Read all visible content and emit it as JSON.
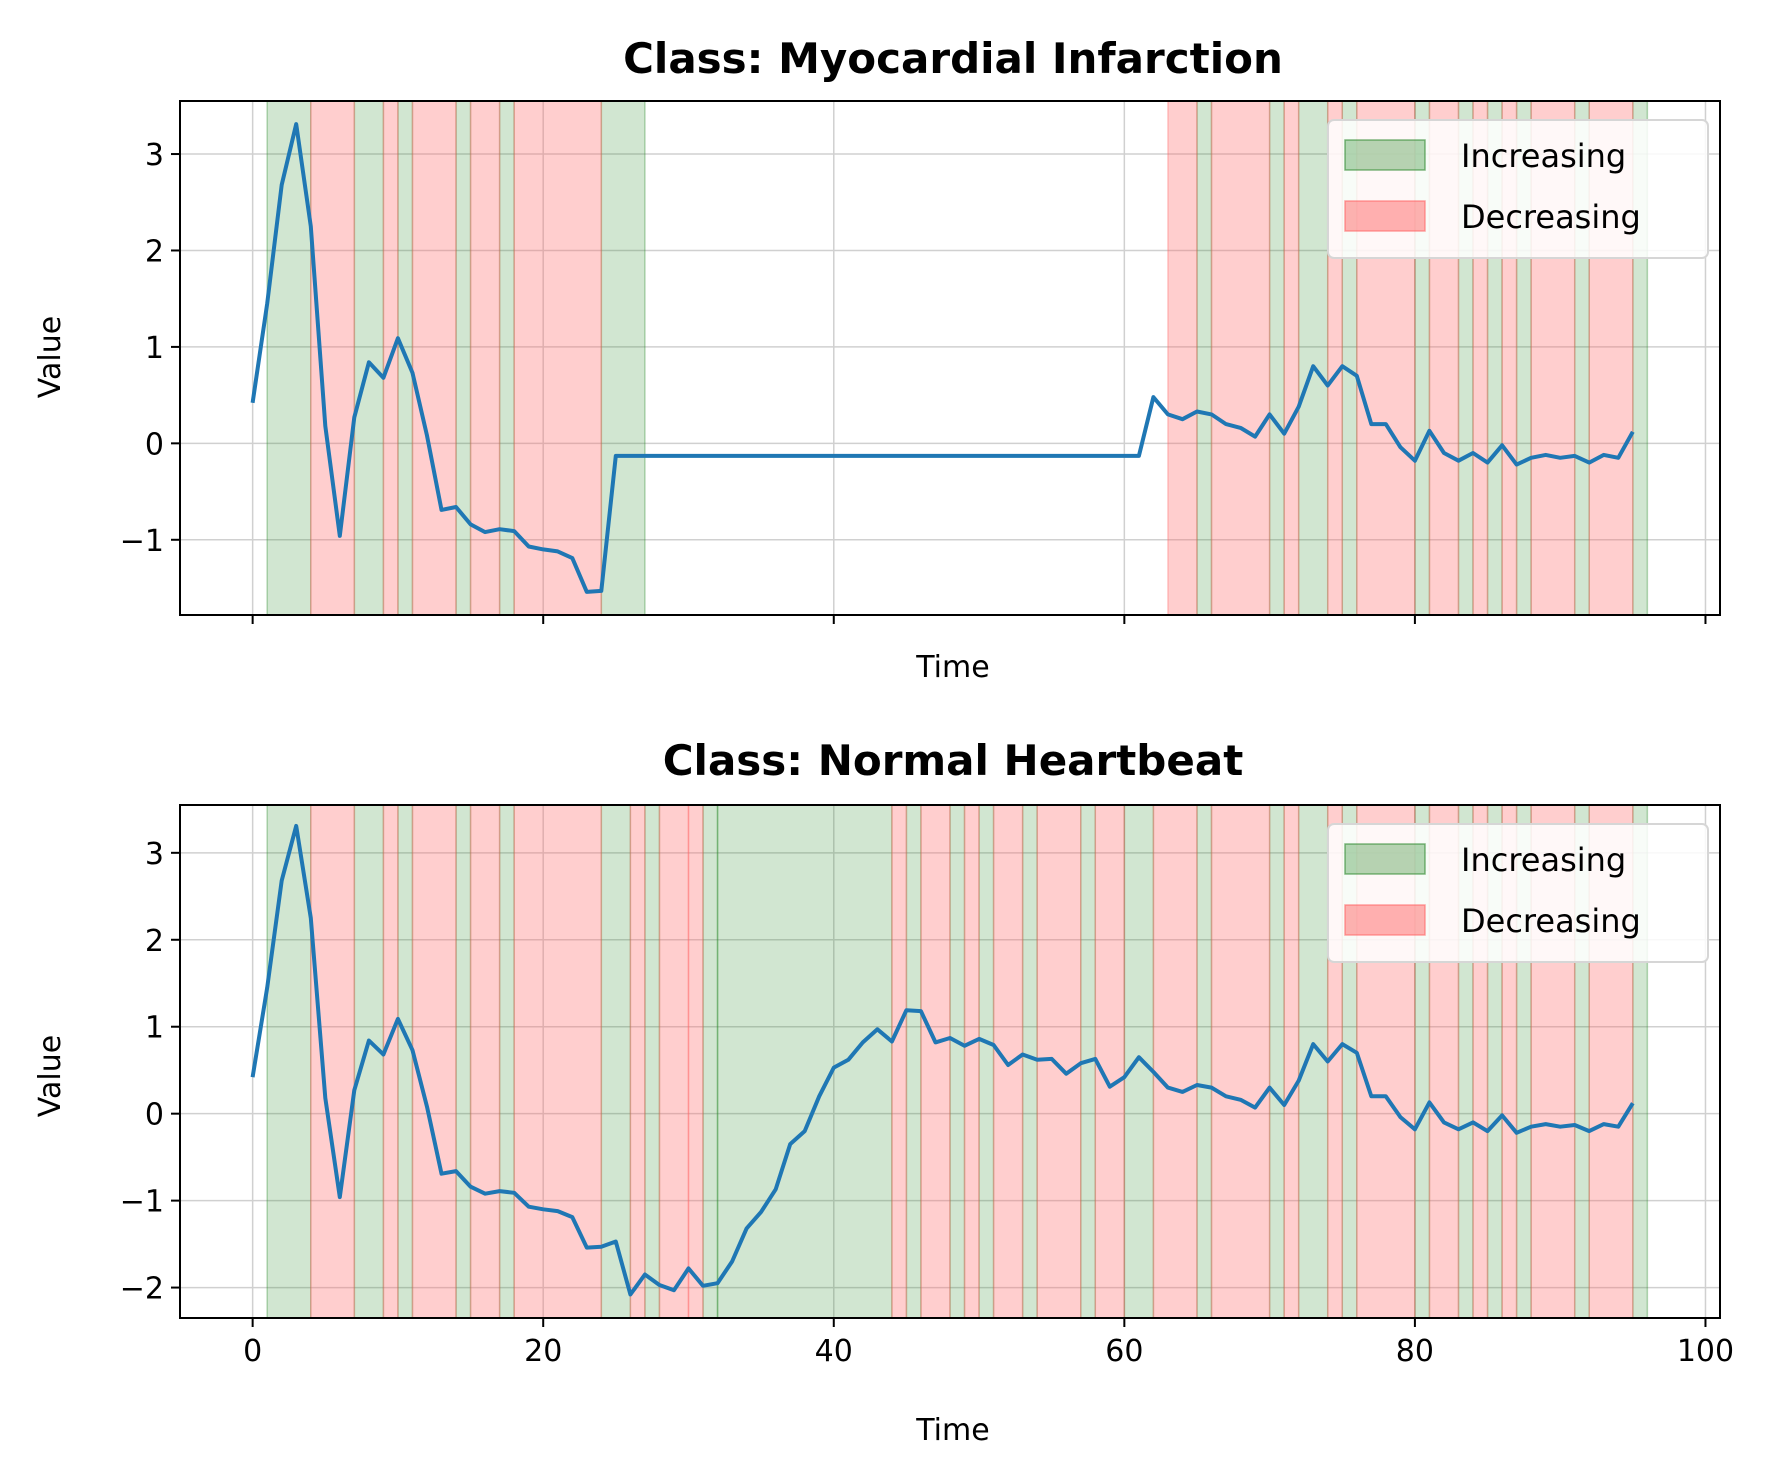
{
  "colors": {
    "line": "#1f77b4",
    "increasing": "#2e8b2e",
    "decreasing": "#ff6666",
    "grid": "#d0d0d0"
  },
  "chart_data": [
    {
      "type": "line",
      "title": "Class: Myocardial Infarction",
      "xlabel": "Time",
      "ylabel": "Value",
      "xlim": [
        -5,
        101
      ],
      "ylim": [
        -1.78,
        3.55
      ],
      "xticks": [
        0,
        20,
        40,
        60,
        80,
        100
      ],
      "yticks": [
        3,
        2,
        1,
        0,
        -1
      ],
      "show_xtick_labels": false,
      "legend": {
        "position": "top-right",
        "entries": [
          "Increasing",
          "Decreasing"
        ]
      },
      "x": [
        0,
        1,
        2,
        3,
        4,
        5,
        6,
        7,
        8,
        9,
        10,
        11,
        12,
        13,
        14,
        15,
        16,
        17,
        18,
        19,
        20,
        21,
        22,
        23,
        24,
        25,
        26,
        27,
        28,
        29,
        30,
        31,
        32,
        33,
        34,
        35,
        36,
        37,
        38,
        39,
        40,
        41,
        42,
        43,
        44,
        45,
        46,
        47,
        48,
        49,
        50,
        51,
        52,
        53,
        54,
        55,
        56,
        57,
        58,
        59,
        60,
        61,
        62,
        63,
        64,
        65,
        66,
        67,
        68,
        69,
        70,
        71,
        72,
        73,
        74,
        75,
        76,
        77,
        78,
        79,
        80,
        81,
        82,
        83,
        84,
        85,
        86,
        87,
        88,
        89,
        90,
        91,
        92,
        93,
        94,
        95
      ],
      "values": [
        0.42,
        1.45,
        2.68,
        3.31,
        2.25,
        0.18,
        -0.96,
        0.27,
        0.84,
        0.68,
        1.09,
        0.73,
        0.08,
        -0.69,
        -0.66,
        -0.84,
        -0.92,
        -0.89,
        -0.91,
        -1.07,
        -1.1,
        -1.12,
        -1.19,
        -1.54,
        -1.53,
        -0.13,
        -0.13,
        -0.13,
        -0.13,
        -0.13,
        -0.13,
        -0.13,
        -0.13,
        -0.13,
        -0.13,
        -0.13,
        -0.13,
        -0.13,
        -0.13,
        -0.13,
        -0.13,
        -0.13,
        -0.13,
        -0.13,
        -0.13,
        -0.13,
        -0.13,
        -0.13,
        -0.13,
        -0.13,
        -0.13,
        -0.13,
        -0.13,
        -0.13,
        -0.13,
        -0.13,
        -0.13,
        -0.13,
        -0.13,
        -0.13,
        -0.13,
        -0.13,
        0.48,
        0.3,
        0.25,
        0.33,
        0.3,
        0.2,
        0.16,
        0.07,
        0.3,
        0.1,
        0.38,
        0.8,
        0.6,
        0.8,
        0.7,
        0.2,
        0.2,
        -0.04,
        -0.18,
        0.13,
        -0.1,
        -0.18,
        -0.1,
        -0.2,
        -0.02,
        -0.22,
        -0.15,
        -0.12,
        -0.15,
        -0.13,
        -0.2,
        -0.12,
        -0.15,
        0.12
      ],
      "segments": {
        "increasing": [
          [
            1,
            4
          ],
          [
            7,
            9
          ],
          [
            10,
            11
          ],
          [
            14,
            15
          ],
          [
            17,
            18
          ],
          [
            24,
            27
          ],
          [
            65,
            66
          ],
          [
            70,
            71
          ],
          [
            72,
            74
          ],
          [
            75,
            76
          ],
          [
            80,
            81
          ],
          [
            83,
            84
          ],
          [
            85,
            86
          ],
          [
            87,
            88
          ],
          [
            91,
            92
          ],
          [
            95,
            96
          ]
        ],
        "decreasing": [
          [
            4,
            7
          ],
          [
            9,
            10
          ],
          [
            11,
            14
          ],
          [
            15,
            17
          ],
          [
            18,
            24
          ],
          [
            63,
            65
          ],
          [
            66,
            70
          ],
          [
            71,
            72
          ],
          [
            74,
            75
          ],
          [
            76,
            80
          ],
          [
            81,
            83
          ],
          [
            84,
            85
          ],
          [
            86,
            87
          ],
          [
            88,
            91
          ],
          [
            92,
            95
          ]
        ]
      }
    },
    {
      "type": "line",
      "title": "Class: Normal Heartbeat",
      "xlabel": "Time",
      "ylabel": "Value",
      "xlim": [
        -5,
        101
      ],
      "ylim": [
        -2.35,
        3.55
      ],
      "xticks": [
        0,
        20,
        40,
        60,
        80,
        100
      ],
      "yticks": [
        3,
        2,
        1,
        0,
        -1,
        -2
      ],
      "show_xtick_labels": true,
      "legend": {
        "position": "top-right",
        "entries": [
          "Increasing",
          "Decreasing"
        ]
      },
      "x": [
        0,
        1,
        2,
        3,
        4,
        5,
        6,
        7,
        8,
        9,
        10,
        11,
        12,
        13,
        14,
        15,
        16,
        17,
        18,
        19,
        20,
        21,
        22,
        23,
        24,
        25,
        26,
        27,
        28,
        29,
        30,
        31,
        32,
        33,
        34,
        35,
        36,
        37,
        38,
        39,
        40,
        41,
        42,
        43,
        44,
        45,
        46,
        47,
        48,
        49,
        50,
        51,
        52,
        53,
        54,
        55,
        56,
        57,
        58,
        59,
        60,
        61,
        62,
        63,
        64,
        65,
        66,
        67,
        68,
        69,
        70,
        71,
        72,
        73,
        74,
        75,
        76,
        77,
        78,
        79,
        80,
        81,
        82,
        83,
        84,
        85,
        86,
        87,
        88,
        89,
        90,
        91,
        92,
        93,
        94,
        95
      ],
      "values": [
        0.42,
        1.45,
        2.68,
        3.31,
        2.25,
        0.18,
        -0.96,
        0.27,
        0.84,
        0.68,
        1.09,
        0.73,
        0.08,
        -0.69,
        -0.66,
        -0.84,
        -0.92,
        -0.89,
        -0.91,
        -1.07,
        -1.1,
        -1.12,
        -1.19,
        -1.54,
        -1.53,
        -1.47,
        -2.08,
        -1.85,
        -1.97,
        -2.03,
        -1.78,
        -1.98,
        -1.95,
        -1.7,
        -1.32,
        -1.13,
        -0.87,
        -0.35,
        -0.2,
        0.2,
        0.53,
        0.62,
        0.82,
        0.97,
        0.83,
        1.19,
        1.18,
        0.82,
        0.87,
        0.78,
        0.86,
        0.79,
        0.56,
        0.68,
        0.62,
        0.63,
        0.46,
        0.58,
        0.63,
        0.31,
        0.42,
        0.65,
        0.48,
        0.3,
        0.25,
        0.33,
        0.3,
        0.2,
        0.16,
        0.07,
        0.3,
        0.1,
        0.38,
        0.8,
        0.6,
        0.8,
        0.7,
        0.2,
        0.2,
        -0.04,
        -0.18,
        0.13,
        -0.1,
        -0.18,
        -0.1,
        -0.2,
        -0.02,
        -0.22,
        -0.15,
        -0.12,
        -0.15,
        -0.13,
        -0.2,
        -0.12,
        -0.15,
        0.12
      ],
      "segments": {
        "increasing": [
          [
            1,
            4
          ],
          [
            7,
            9
          ],
          [
            10,
            11
          ],
          [
            14,
            15
          ],
          [
            17,
            18
          ],
          [
            24,
            26
          ],
          [
            27,
            28
          ],
          [
            31,
            32
          ],
          [
            32,
            44
          ],
          [
            45,
            46
          ],
          [
            48,
            49
          ],
          [
            50,
            51
          ],
          [
            53,
            54
          ],
          [
            57,
            58
          ],
          [
            60,
            62
          ],
          [
            65,
            66
          ],
          [
            70,
            71
          ],
          [
            72,
            74
          ],
          [
            75,
            76
          ],
          [
            80,
            81
          ],
          [
            83,
            84
          ],
          [
            85,
            86
          ],
          [
            87,
            88
          ],
          [
            91,
            92
          ],
          [
            95,
            96
          ]
        ],
        "decreasing": [
          [
            4,
            7
          ],
          [
            9,
            10
          ],
          [
            11,
            14
          ],
          [
            15,
            17
          ],
          [
            18,
            24
          ],
          [
            26,
            27
          ],
          [
            28,
            30
          ],
          [
            30,
            31
          ],
          [
            44,
            45
          ],
          [
            46,
            48
          ],
          [
            49,
            50
          ],
          [
            51,
            53
          ],
          [
            54,
            57
          ],
          [
            58,
            60
          ],
          [
            62,
            65
          ],
          [
            66,
            70
          ],
          [
            71,
            72
          ],
          [
            74,
            75
          ],
          [
            76,
            80
          ],
          [
            81,
            83
          ],
          [
            84,
            85
          ],
          [
            86,
            87
          ],
          [
            88,
            91
          ],
          [
            92,
            95
          ]
        ]
      }
    }
  ]
}
